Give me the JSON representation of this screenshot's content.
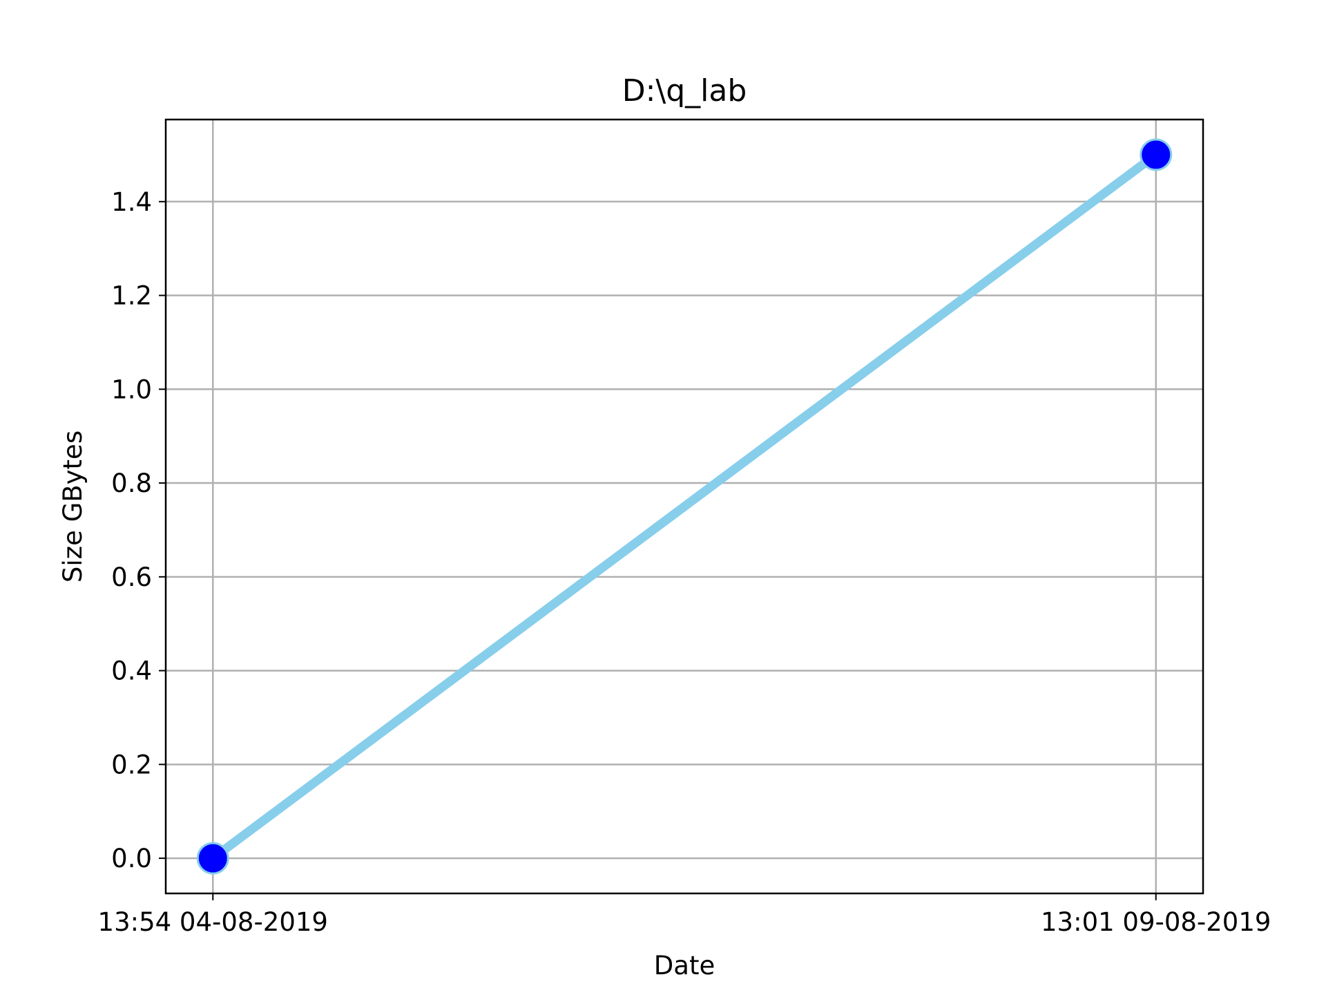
{
  "chart_data": {
    "type": "line",
    "title": "D:\\q_lab",
    "xlabel": "Date",
    "ylabel": "Size GBytes",
    "x": [
      "13:54 04-08-2019",
      "13:01 09-08-2019"
    ],
    "x_ticks": [
      "13:54 04-08-2019",
      "13:01 09-08-2019"
    ],
    "series": [
      {
        "values": [
          0.0,
          1.5
        ]
      }
    ],
    "yticks": [
      0.0,
      0.2,
      0.4,
      0.6,
      0.8,
      1.0,
      1.2,
      1.4
    ],
    "ylim": [
      -0.075,
      1.575
    ],
    "grid": true,
    "colors": {
      "line": "#87ceeb",
      "marker_fill": "#0000ff",
      "marker_edge": "#87ceeb"
    }
  }
}
